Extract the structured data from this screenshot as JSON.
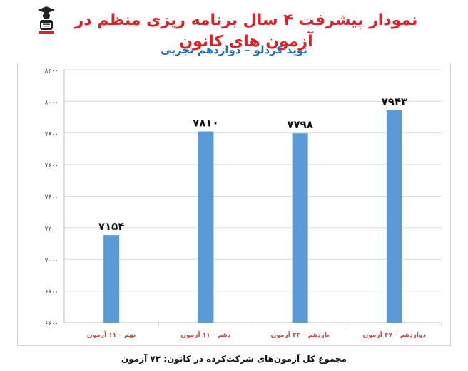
{
  "header": {
    "title": "نمودار پیشرفت ۴ سال برنامه ریزی منظم در آزمون های کانون",
    "subtitle": "نوید کردلو – دوازدهم تجربی"
  },
  "footer": {
    "total_label": "مجموع کل آزمون‌های شرکت‌کرده در کانون:",
    "total_value": "۷۲ آزمون"
  },
  "colors": {
    "title": "#e41e25",
    "subtitle": "#1f6fb5",
    "bar": "#5b9bd5",
    "category_label": "#c0504d"
  },
  "chart_data": {
    "type": "bar",
    "categories": [
      "نهم – ۱۱ آزمون",
      "دهم – ۱۱ آزمون",
      "یازدهم – ۲۳ آزمون",
      "دوازدهم – ۲۷ آزمون"
    ],
    "values": [
      7154,
      7810,
      7798,
      7943
    ],
    "value_labels": [
      "۷۱۵۴",
      "۷۸۱۰",
      "۷۷۹۸",
      "۷۹۴۳"
    ],
    "ylim": [
      6600,
      8200
    ],
    "yticks": [
      6600,
      6800,
      7000,
      7200,
      7400,
      7600,
      7800,
      8000,
      8200
    ],
    "ytick_labels": [
      "۶۶۰۰",
      "۶۸۰۰",
      "۷۰۰۰",
      "۷۲۰۰",
      "۷۴۰۰",
      "۷۶۰۰",
      "۷۸۰۰",
      "۸۰۰۰",
      "۸۲۰۰"
    ],
    "grid": true,
    "legend": "none"
  }
}
